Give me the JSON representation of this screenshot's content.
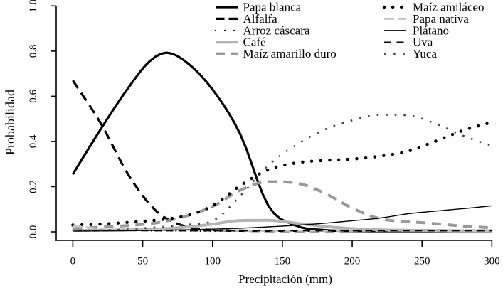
{
  "chart_data": {
    "type": "line",
    "title": "",
    "xlabel": "Precipitación (mm)",
    "ylabel": "Probabilidad",
    "xlim": [
      0,
      300
    ],
    "ylim": [
      0,
      1
    ],
    "x_ticks": [
      0,
      50,
      100,
      150,
      200,
      250,
      300
    ],
    "x_tick_labels": [
      "0",
      "50",
      "100",
      "150",
      "200",
      "250",
      "300"
    ],
    "y_ticks": [
      0.0,
      0.2,
      0.4,
      0.6,
      0.8,
      1.0
    ],
    "y_tick_labels": [
      "0.0",
      "0.2",
      "0.4",
      "0.6",
      "0.8",
      "1.0"
    ],
    "grid": false,
    "legend_position": "top",
    "axis_color": "#000000",
    "background_color": "#ffffff",
    "x": [
      0,
      20,
      40,
      60,
      80,
      100,
      120,
      140,
      160,
      180,
      200,
      220,
      240,
      260,
      280,
      300
    ],
    "series": [
      {
        "name": "Papa blanca",
        "color": "#000000",
        "line_width": 3.2,
        "line_type": "solid",
        "dash": "",
        "linecap": "butt",
        "x": [
          0,
          20,
          40,
          55,
          67,
          80,
          100,
          120,
          140,
          160,
          180,
          200,
          220,
          240,
          260,
          280,
          300
        ],
        "values": [
          0.255,
          0.455,
          0.64,
          0.755,
          0.793,
          0.757,
          0.63,
          0.43,
          0.115,
          0.027,
          0.008,
          0.004,
          0.003,
          0.003,
          0.003,
          0.003,
          0.003
        ]
      },
      {
        "name": "Alfalfa",
        "color": "#000000",
        "line_width": 3.2,
        "line_type": "dashed",
        "dash": "13 8",
        "linecap": "butt",
        "values": [
          0.67,
          0.48,
          0.25,
          0.09,
          0.025,
          0.008,
          0.005,
          0.004,
          0.004,
          0.004,
          0.004,
          0.004,
          0.004,
          0.004,
          0.004,
          0.004
        ],
        "legend_dash": "12.5 6"
      },
      {
        "name": "Arroz cáscara",
        "color": "#000000",
        "line_width": 2.2,
        "line_type": "dotted",
        "dash": "0.1 6.8",
        "legend_dash": "0.1 13",
        "linecap": "round",
        "values": [
          0.008,
          0.007,
          0.006,
          0.005,
          0.004,
          0.003,
          0.003,
          0.003,
          0.003,
          0.003,
          0.003,
          0.003,
          0.003,
          0.003,
          0.003,
          0.003
        ]
      },
      {
        "name": "Café",
        "color": "#b3b3b3",
        "line_width": 4,
        "line_type": "solid",
        "dash": "",
        "linecap": "butt",
        "values": [
          0.006,
          0.007,
          0.009,
          0.012,
          0.02,
          0.034,
          0.05,
          0.051,
          0.038,
          0.024,
          0.014,
          0.009,
          0.007,
          0.006,
          0.005,
          0.005
        ]
      },
      {
        "name": "Maíz amarillo duro",
        "color": "#999999",
        "line_width": 4,
        "line_type": "dashed",
        "dash": "13 9",
        "linecap": "butt",
        "values": [
          0.014,
          0.021,
          0.028,
          0.04,
          0.068,
          0.112,
          0.185,
          0.222,
          0.216,
          0.172,
          0.105,
          0.058,
          0.045,
          0.036,
          0.025,
          0.018
        ]
      },
      {
        "name": "Maíz amiláceo",
        "color": "#000000",
        "line_width": 4.4,
        "line_type": "bold-dotted",
        "dash": "0.1 12.6",
        "legend_dash": "0.1 12",
        "linecap": "round",
        "values": [
          0.03,
          0.034,
          0.042,
          0.052,
          0.07,
          0.115,
          0.205,
          0.275,
          0.305,
          0.316,
          0.322,
          0.335,
          0.357,
          0.402,
          0.45,
          0.485
        ]
      },
      {
        "name": "Papa nativa",
        "color": "#c6c6c6",
        "line_width": 3,
        "line_type": "dashed",
        "dash": "12 6.5",
        "linecap": "butt",
        "values": [
          0.028,
          0.013,
          0.009,
          0.0075,
          0.0065,
          0.006,
          0.0055,
          0.005,
          0.005,
          0.005,
          0.005,
          0.005,
          0.005,
          0.005,
          0.005,
          0.005
        ],
        "legend_dash": "14 5.5"
      },
      {
        "name": "Plátano",
        "color": "#000000",
        "line_width": 1.4,
        "line_type": "solid",
        "dash": "",
        "linecap": "butt",
        "values": [
          0.003,
          0.004,
          0.005,
          0.007,
          0.009,
          0.012,
          0.016,
          0.022,
          0.029,
          0.038,
          0.049,
          0.061,
          0.08,
          0.092,
          0.103,
          0.115
        ]
      },
      {
        "name": "Uva",
        "color": "#000000",
        "line_width": 1.5,
        "line_type": "long-dashed",
        "dash": "10 7.5",
        "linecap": "butt",
        "values": [
          0.005,
          0.005,
          0.005,
          0.0045,
          0.0045,
          0.0045,
          0.0045,
          0.0045,
          0.0045,
          0.0045,
          0.0045,
          0.0045,
          0.0045,
          0.0045,
          0.0045,
          0.0045
        ],
        "dash_offset": 9
      },
      {
        "name": "Yuca",
        "color": "#424242",
        "line_width": 2.5,
        "line_type": "dotted",
        "dash": "2.6 10",
        "legend_dash": "2.6 10.5",
        "linecap": "butt",
        "values": [
          0.005,
          0.007,
          0.012,
          0.02,
          0.031,
          0.048,
          0.16,
          0.295,
          0.385,
          0.452,
          0.493,
          0.518,
          0.515,
          0.478,
          0.424,
          0.38
        ]
      }
    ]
  },
  "legend": {
    "columns": [
      [
        "Papa blanca",
        "Alfalfa",
        "Arroz cáscara",
        "Café",
        "Maíz amarillo duro"
      ],
      [
        "Maíz amiláceo",
        "Papa nativa",
        "Plátano",
        "Uva",
        "Yuca"
      ]
    ]
  }
}
